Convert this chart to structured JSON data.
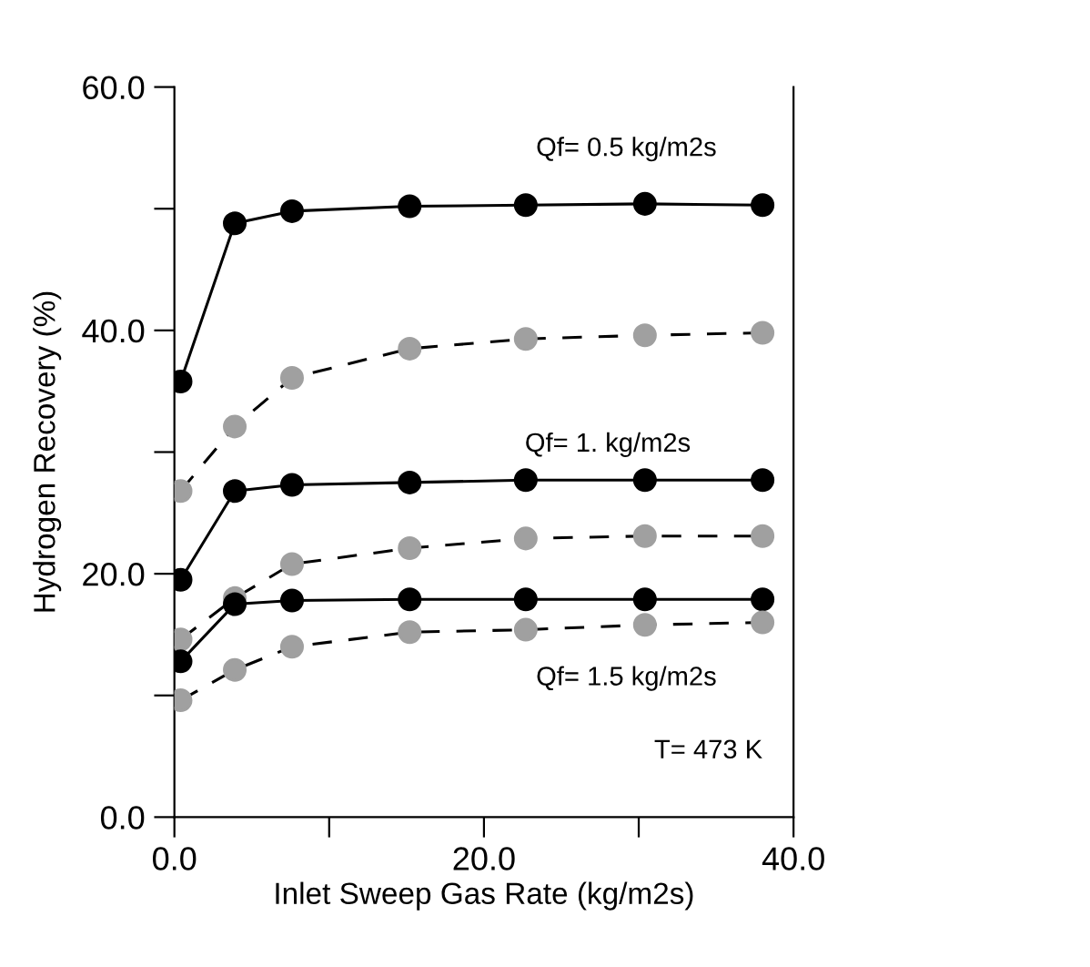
{
  "chart_data": {
    "type": "line",
    "xlabel": "Inlet Sweep Gas Rate (kg/m2s)",
    "ylabel": "Hydrogen Recovery (%)",
    "x": [
      0.4,
      3.9,
      7.6,
      15.2,
      22.7,
      30.4,
      38.0
    ],
    "series": [
      {
        "color": "#000000",
        "line_style": "solid",
        "values": [
          35.8,
          48.8,
          49.8,
          50.2,
          50.3,
          50.4,
          50.3
        ]
      },
      {
        "color": "#a0a0a0",
        "line_style": "dashed",
        "values": [
          26.8,
          32.1,
          36.1,
          38.5,
          39.3,
          39.6,
          39.8
        ]
      },
      {
        "color": "#000000",
        "line_style": "solid",
        "values": [
          19.5,
          26.8,
          27.3,
          27.5,
          27.7,
          27.7,
          27.7
        ]
      },
      {
        "color": "#a0a0a0",
        "line_style": "dashed",
        "values": [
          14.6,
          18.0,
          20.8,
          22.1,
          22.9,
          23.1,
          23.1
        ]
      },
      {
        "color": "#000000",
        "line_style": "solid",
        "values": [
          12.8,
          17.5,
          17.8,
          17.9,
          17.9,
          17.9,
          17.9
        ]
      },
      {
        "color": "#a0a0a0",
        "line_style": "dashed",
        "values": [
          9.6,
          12.1,
          14.0,
          15.2,
          15.4,
          15.8,
          16.0
        ]
      }
    ],
    "marker": "circle",
    "xlim": [
      0,
      40
    ],
    "ylim": [
      0,
      60
    ],
    "xticks": [
      {
        "value": 0,
        "label": "0.0"
      },
      {
        "value": 10,
        "label": null
      },
      {
        "value": 20,
        "label": "20.0"
      },
      {
        "value": 30,
        "label": null
      },
      {
        "value": 40,
        "label": "40.0"
      }
    ],
    "yticks": [
      {
        "value": 0,
        "label": "0.0"
      },
      {
        "value": 10,
        "label": null
      },
      {
        "value": 20,
        "label": "20.0"
      },
      {
        "value": 30,
        "label": null
      },
      {
        "value": 40,
        "label": "40.0"
      },
      {
        "value": 50,
        "label": null
      },
      {
        "value": 60,
        "label": "60.0"
      }
    ],
    "grid": false,
    "legend": false,
    "annotations": [
      "Qf= 0.5 kg/m2s",
      "Qf= 1. kg/m2s",
      "Qf= 1.5 kg/m2s",
      "T= 473 K"
    ]
  }
}
